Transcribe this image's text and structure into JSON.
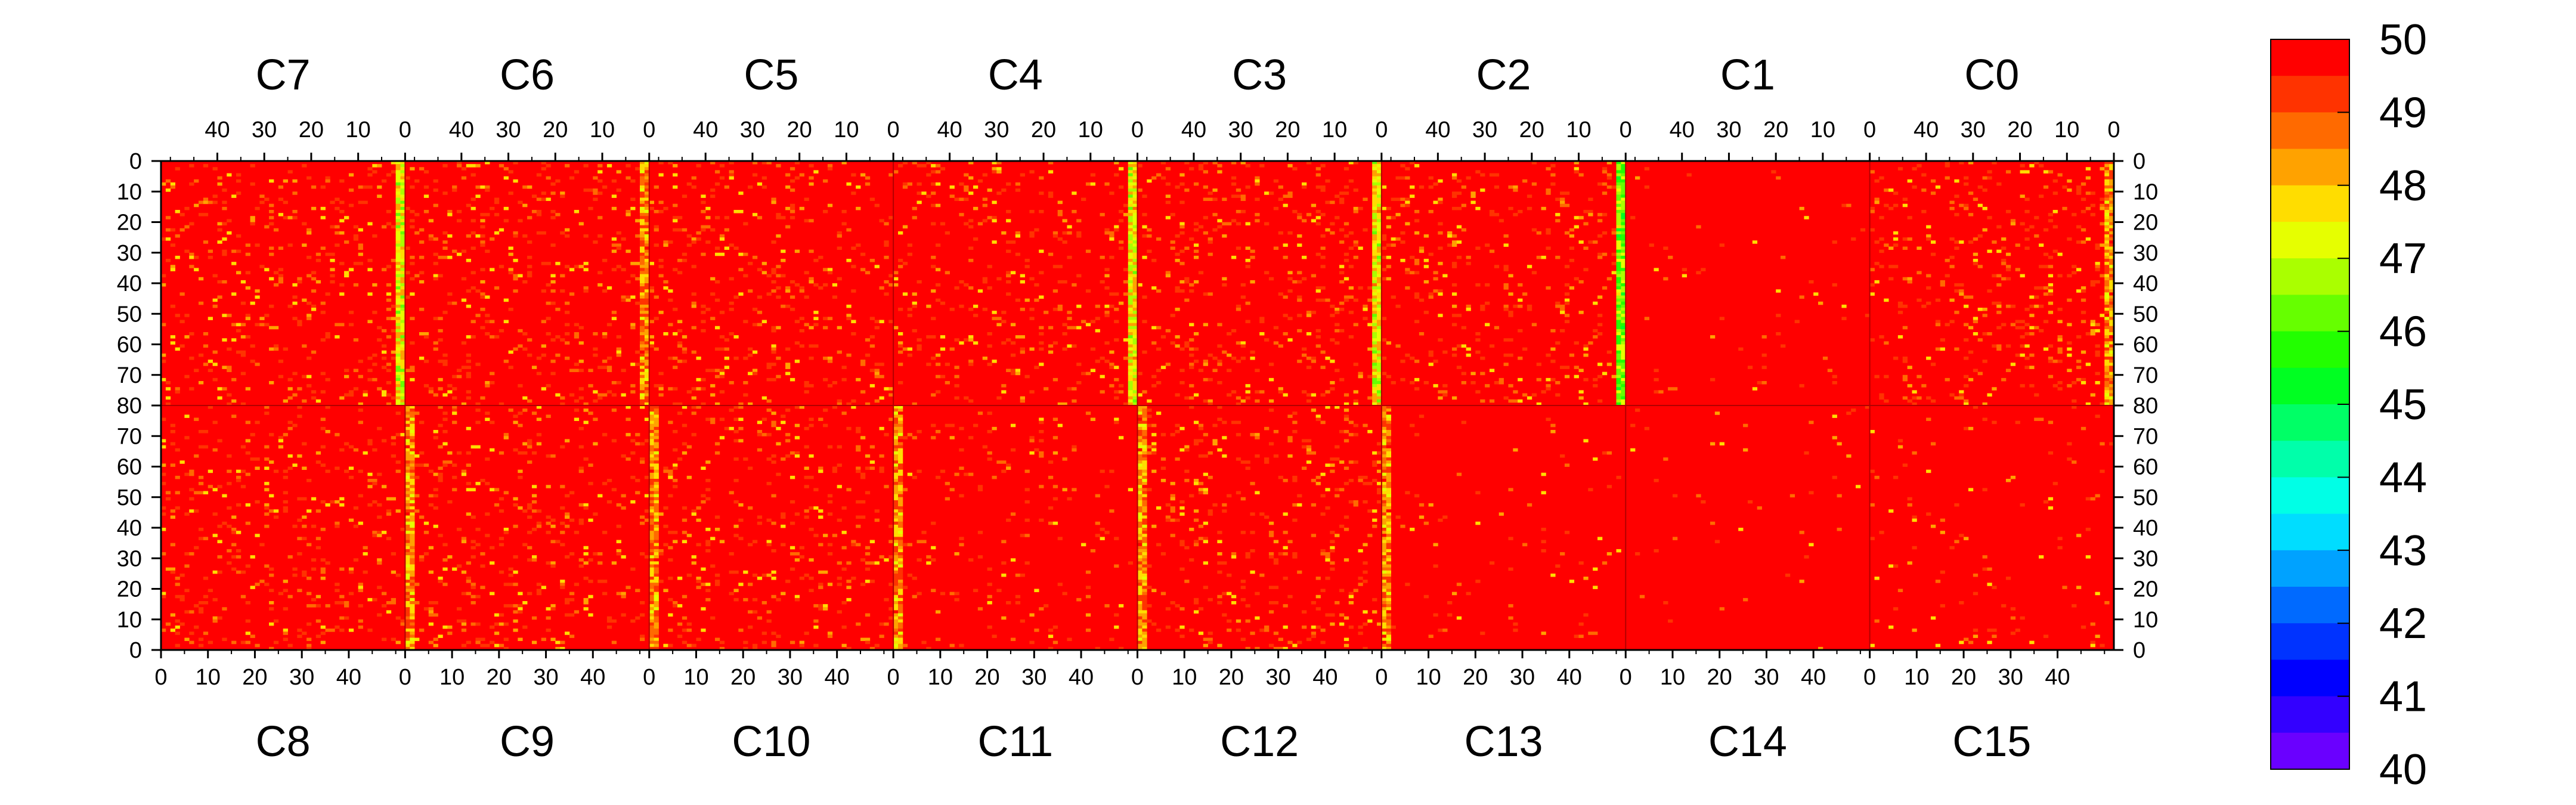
{
  "chart_data": {
    "type": "heatmap",
    "title": "",
    "xlabel": "",
    "ylabel": "",
    "top_chips": [
      "C7",
      "C6",
      "C5",
      "C4",
      "C3",
      "C2",
      "C1",
      "C0"
    ],
    "bottom_chips": [
      "C8",
      "C9",
      "C10",
      "C11",
      "C12",
      "C13",
      "C14",
      "C15"
    ],
    "top_x_ticks": [
      "40",
      "30",
      "20",
      "10",
      "0"
    ],
    "bottom_x_ticks": [
      "0",
      "10",
      "20",
      "30",
      "40"
    ],
    "top_half_y_ticks": [
      "0",
      "10",
      "20",
      "30",
      "40",
      "50",
      "60",
      "70",
      "80"
    ],
    "bottom_half_y_ticks": [
      "70",
      "60",
      "50",
      "40",
      "30",
      "20",
      "10",
      "0"
    ],
    "columns_per_chip": 52,
    "rows_per_half": 80,
    "zrange": [
      40,
      50
    ],
    "colorbar": {
      "ticks": [
        "50",
        "49",
        "48",
        "47",
        "46",
        "45",
        "44",
        "43",
        "42",
        "41",
        "40"
      ],
      "colors": [
        "#ff0000",
        "#ff3300",
        "#ff6a00",
        "#ffa200",
        "#ffdd00",
        "#e6ff00",
        "#aaff00",
        "#66ff00",
        "#22ff00",
        "#00ff22",
        "#00ff66",
        "#00ffaa",
        "#00ffe6",
        "#00ddff",
        "#00a2ff",
        "#006aff",
        "#0033ff",
        "#0000ff",
        "#3300ff",
        "#6a00ff"
      ]
    },
    "dominant_value": 50,
    "low_value_columns": [
      {
        "chip": "C7",
        "column": 0,
        "level": 47
      },
      {
        "chip": "C6",
        "column": 0,
        "level": 48
      },
      {
        "chip": "C4",
        "column": 0,
        "level": 47
      },
      {
        "chip": "C3",
        "column": 0,
        "level": 47
      },
      {
        "chip": "C2",
        "column": 0,
        "level": 46
      },
      {
        "chip": "C0",
        "column": 0,
        "level": 48
      },
      {
        "chip": "C9",
        "column": 0,
        "level": 48
      },
      {
        "chip": "C10",
        "column": 0,
        "level": 48
      },
      {
        "chip": "C11",
        "column": 0,
        "level": 48
      },
      {
        "chip": "C12",
        "column": 0,
        "level": 48
      },
      {
        "chip": "C13",
        "column": 0,
        "level": 48
      }
    ]
  }
}
